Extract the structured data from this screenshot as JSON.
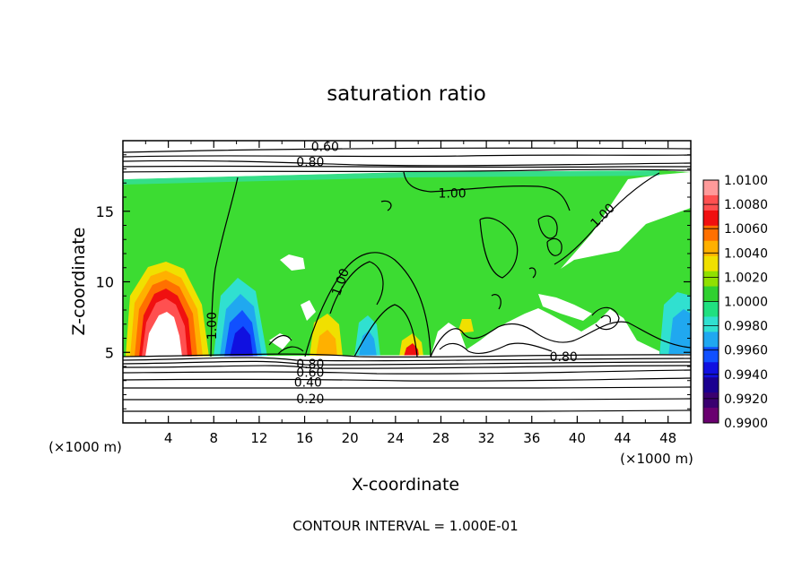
{
  "chart_data": {
    "type": "heatmap",
    "title": "saturation ratio",
    "xlabel": "X-coordinate",
    "ylabel": "Z-coordinate",
    "x_unit": "(×1000 m)",
    "z_unit": "(×1000 m)",
    "footer": "CONTOUR INTERVAL = 1.000E-01",
    "xlim": [
      0,
      50
    ],
    "ylim": [
      0,
      20
    ],
    "x_ticks": [
      {
        "value": 4,
        "label": "4"
      },
      {
        "value": 8,
        "label": "8"
      },
      {
        "value": 12,
        "label": "12"
      },
      {
        "value": 16,
        "label": "16"
      },
      {
        "value": 20,
        "label": "20"
      },
      {
        "value": 24,
        "label": "24"
      },
      {
        "value": 28,
        "label": "28"
      },
      {
        "value": 32,
        "label": "32"
      },
      {
        "value": 36,
        "label": "36"
      },
      {
        "value": 40,
        "label": "40"
      },
      {
        "value": 44,
        "label": "44"
      },
      {
        "value": 48,
        "label": "48"
      }
    ],
    "y_ticks": [
      {
        "value": 5,
        "label": "5"
      },
      {
        "value": 10,
        "label": "10"
      },
      {
        "value": 15,
        "label": "15"
      }
    ],
    "colorbar": {
      "labels": [
        "1.0100",
        "1.0080",
        "1.0060",
        "1.0040",
        "1.0020",
        "1.0000",
        "0.9980",
        "0.9960",
        "0.9940",
        "0.9920",
        "0.9900"
      ],
      "colors": [
        "#ff9a9a",
        "#ff5050",
        "#f01010",
        "#ff7000",
        "#ffb000",
        "#f0e000",
        "#90e000",
        "#30d030",
        "#20e080",
        "#30e0d0",
        "#20a8f0",
        "#1050ff",
        "#1010e0",
        "#1a0090",
        "#3a0070",
        "#6a0070"
      ]
    },
    "contour_labels": [
      {
        "text": "0.60",
        "x": 17.8,
        "z": 19.6
      },
      {
        "text": "0.80",
        "x": 16.5,
        "z": 18.5
      },
      {
        "text": "1.00",
        "x": 29.0,
        "z": 16.3
      },
      {
        "text": "1.00",
        "x": 42.5,
        "z": 14.8
      },
      {
        "text": "1.00",
        "x": 19.5,
        "z": 10.2
      },
      {
        "text": "1.00",
        "x": 8.2,
        "z": 7.2
      },
      {
        "text": "0.80",
        "x": 38.8,
        "z": 4.7
      },
      {
        "text": "0.80",
        "x": 16.5,
        "z": 4.2
      },
      {
        "text": "0.60",
        "x": 16.5,
        "z": 3.6
      },
      {
        "text": "0.40",
        "x": 16.3,
        "z": 2.9
      },
      {
        "text": "0.20",
        "x": 16.5,
        "z": 1.7
      }
    ]
  }
}
